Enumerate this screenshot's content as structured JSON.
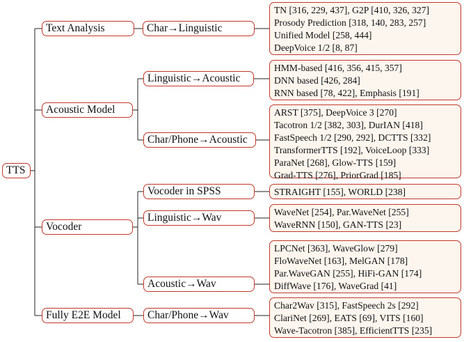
{
  "root": "TTS",
  "categories": {
    "text_analysis": "Text Analysis",
    "acoustic_model": "Acoustic Model",
    "vocoder": "Vocoder",
    "fully_e2e": "Fully E2E Model"
  },
  "subcategories": {
    "char_linguistic": "Char→Linguistic",
    "linguistic_acoustic": "Linguistic→Acoustic",
    "charphone_acoustic": "Char/Phone→Acoustic",
    "vocoder_spss": "Vocoder in SPSS",
    "linguistic_wav": "Linguistic→Wav",
    "acoustic_wav": "Acoustic→Wav",
    "charphone_wav": "Char/Phone→Wav"
  },
  "leaves": {
    "char_linguistic": [
      "TN [316, 229, 437], G2P [410, 326, 327]",
      "Prosody Prediction [318, 140, 283, 257]",
      "Unified Model [258, 444]",
      "DeepVoice 1/2 [8, 87]"
    ],
    "linguistic_acoustic": [
      "HMM-based [416, 356, 415, 357]",
      "DNN based [426, 284]",
      "RNN based [78, 422], Emphasis [191]"
    ],
    "charphone_acoustic": [
      "ARST [375], DeepVoice 3 [270]",
      "Tacotron 1/2 [382, 303], DurIAN [418]",
      "FastSpeech 1/2 [290, 292], DCTTS [332]",
      "TransformerTTS [192], VoiceLoop [333]",
      "ParaNet [268], Glow-TTS [159]",
      "Grad-TTS [276], PriorGrad [185]"
    ],
    "vocoder_spss": [
      "STRAIGHT [155], WORLD [238]"
    ],
    "linguistic_wav": [
      "WaveNet [254], Par.WaveNet [255]",
      "WaveRNN [150], GAN-TTS [23]"
    ],
    "acoustic_wav": [
      "LPCNet [363], WaveGlow [279]",
      "FloWaveNet [163], MelGAN [178]",
      "Par.WaveGAN [255], HiFi-GAN [174]",
      "DiffWave [176], WaveGrad [41]"
    ],
    "charphone_wav": [
      "Char2Wav [315], FastSpeech 2s [292]",
      "ClariNet [269], EATS [69], VITS [160]",
      "Wave-Tacotron [385], EfficientTTS [235]"
    ]
  }
}
